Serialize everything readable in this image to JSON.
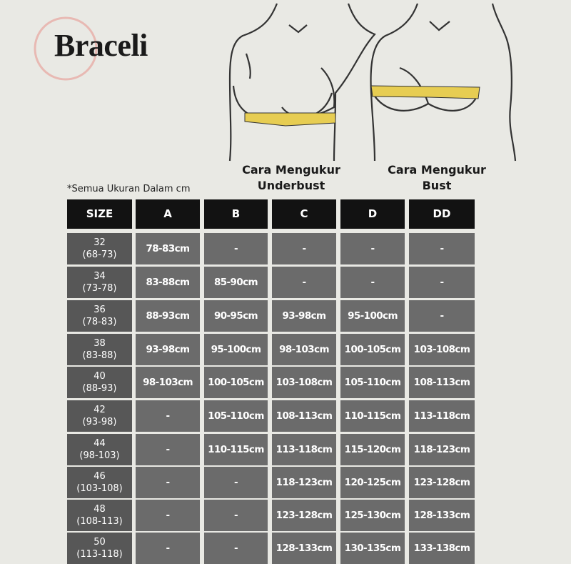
{
  "brand": "Braceli",
  "captions": [
    {
      "line1": "Cara Mengukur",
      "line2": "Underbust"
    },
    {
      "line1": "Cara Mengukur",
      "line2": "Bust"
    }
  ],
  "note": "*Semua Ukuran Dalam cm",
  "table": {
    "header": [
      "SIZE",
      "A",
      "B",
      "C",
      "D",
      "DD"
    ],
    "rows": [
      {
        "size": "32",
        "range": "(68-73)",
        "cells": [
          "78-83cm",
          "-",
          "-",
          "-",
          "-"
        ]
      },
      {
        "size": "34",
        "range": "(73-78)",
        "cells": [
          "83-88cm",
          "85-90cm",
          "-",
          "-",
          "-"
        ]
      },
      {
        "size": "36",
        "range": "(78-83)",
        "cells": [
          "88-93cm",
          "90-95cm",
          "93-98cm",
          "95-100cm",
          "-"
        ]
      },
      {
        "size": "38",
        "range": "(83-88)",
        "cells": [
          "93-98cm",
          "95-100cm",
          "98-103cm",
          "100-105cm",
          "103-108cm"
        ]
      },
      {
        "size": "40",
        "range": "(88-93)",
        "cells": [
          "98-103cm",
          "100-105cm",
          "103-108cm",
          "105-110cm",
          "108-113cm"
        ]
      },
      {
        "size": "42",
        "range": "(93-98)",
        "cells": [
          "-",
          "105-110cm",
          "108-113cm",
          "110-115cm",
          "113-118cm"
        ]
      },
      {
        "size": "44",
        "range": "(98-103)",
        "cells": [
          "-",
          "110-115cm",
          "113-118cm",
          "115-120cm",
          "118-123cm"
        ]
      },
      {
        "size": "46",
        "range": "(103-108)",
        "cells": [
          "-",
          "-",
          "118-123cm",
          "120-125cm",
          "123-128cm"
        ]
      },
      {
        "size": "48",
        "range": "(108-113)",
        "cells": [
          "-",
          "-",
          "123-128cm",
          "125-130cm",
          "128-133cm"
        ]
      },
      {
        "size": "50",
        "range": "(113-118)",
        "cells": [
          "-",
          "-",
          "128-133cm",
          "130-135cm",
          "133-138cm"
        ]
      }
    ]
  }
}
